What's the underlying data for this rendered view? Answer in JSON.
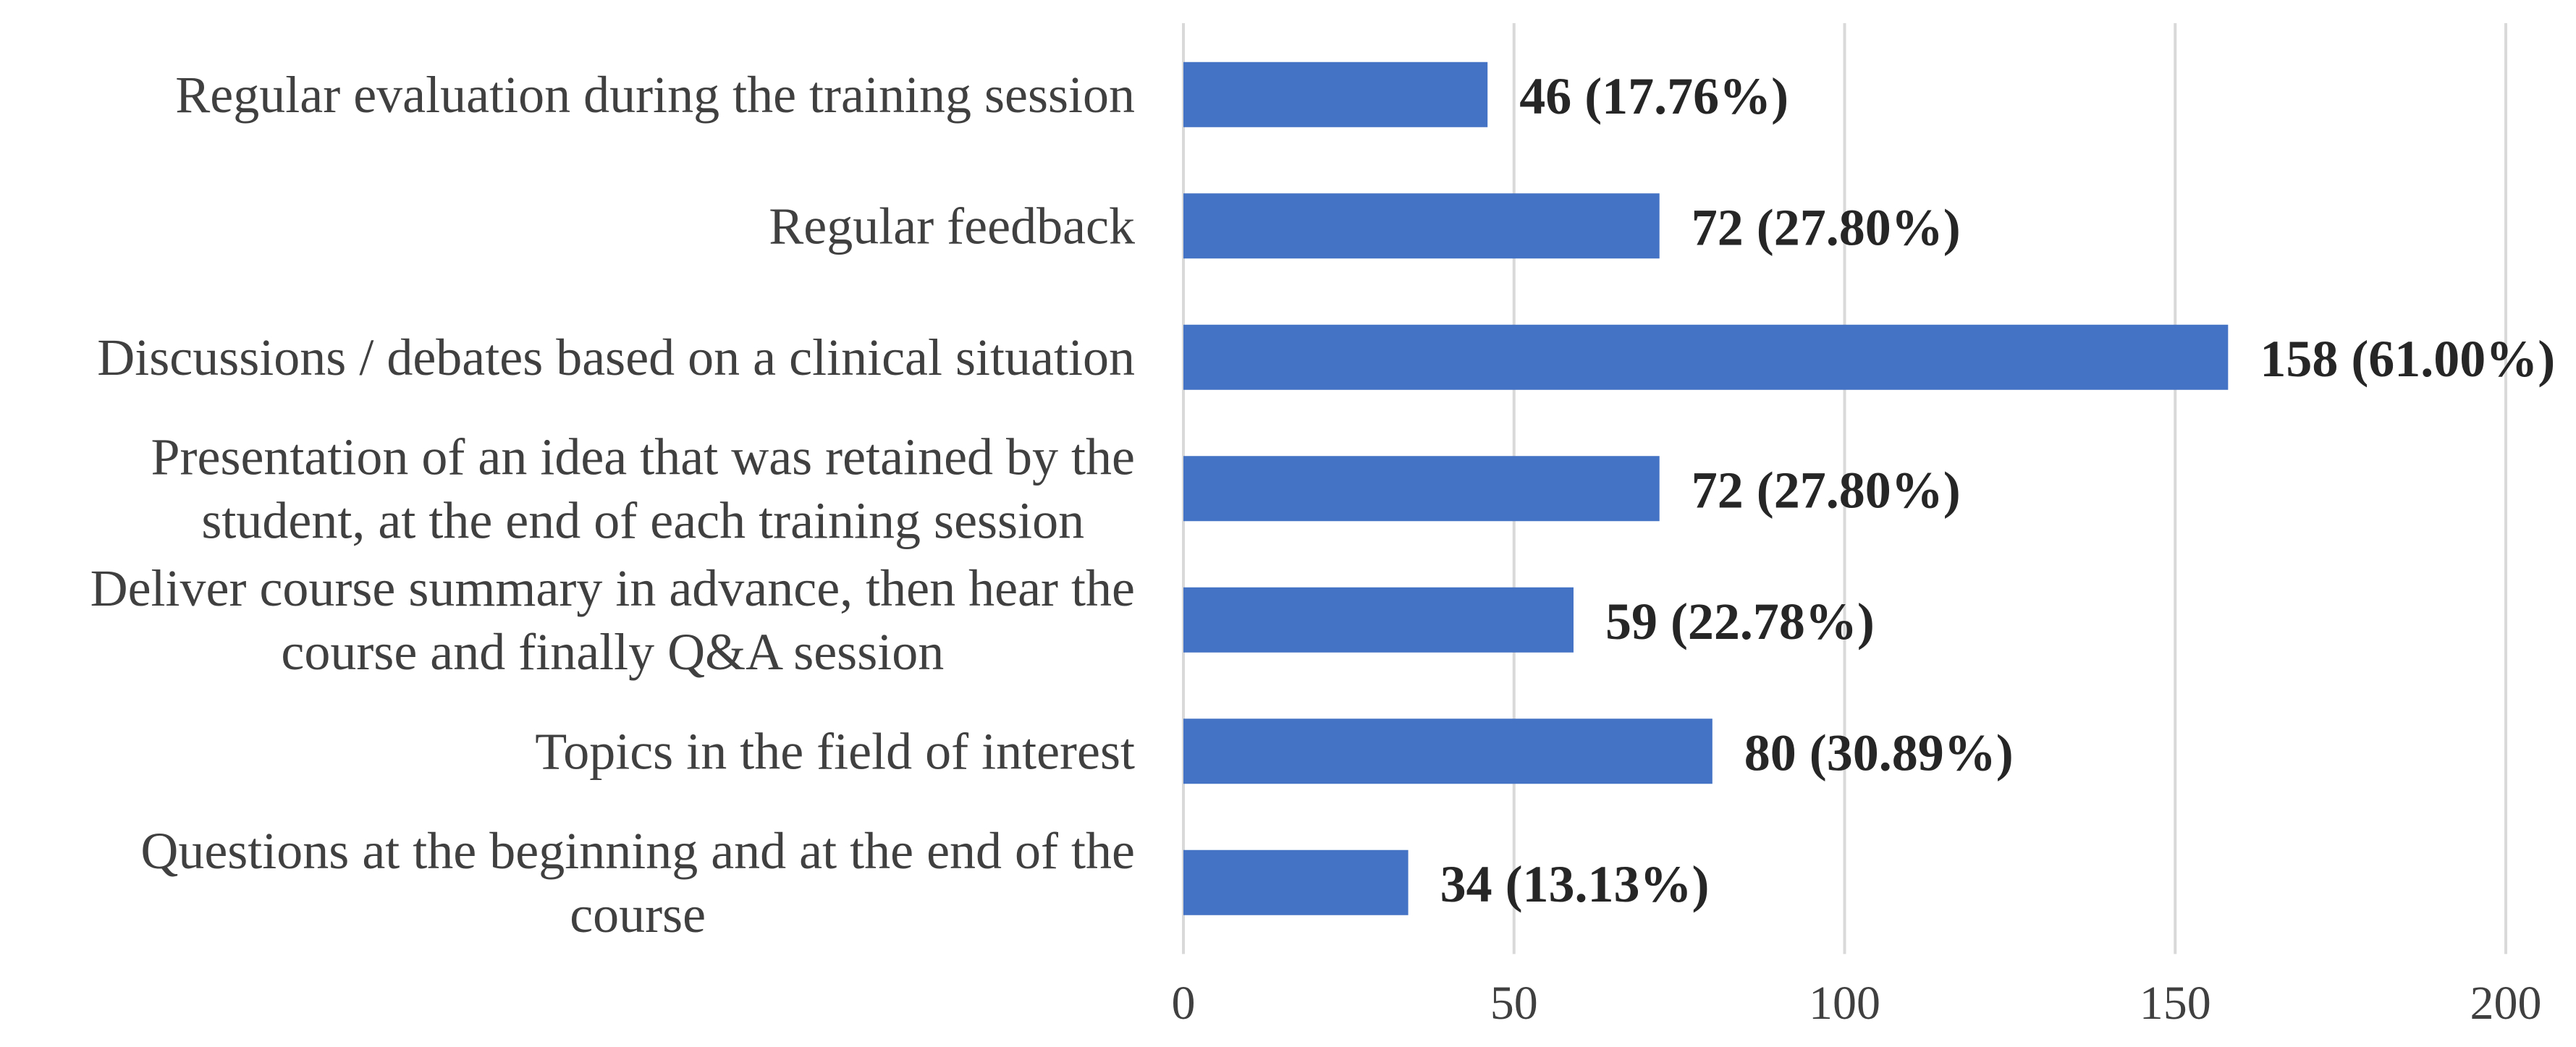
{
  "chart_data": {
    "type": "bar",
    "orientation": "horizontal",
    "categories": [
      "Regular evaluation during the training session",
      "Regular feedback",
      "Discussions / debates based on a clinical situation",
      "Presentation of an idea that was retained by the student, at the end of each training session",
      "Deliver course summary in advance, then hear the course and finally Q&A session",
      "Topics in the field of interest",
      "Questions at the beginning and at the end of the course"
    ],
    "category_lines": [
      [
        "Regular evaluation during the training session"
      ],
      [
        "Regular feedback"
      ],
      [
        "Discussions / debates based on a clinical situation"
      ],
      [
        "Presentation of an idea that was retained by the",
        "student, at the end of each training session"
      ],
      [
        "Deliver course summary in advance, then hear the",
        "course and finally Q&A session"
      ],
      [
        "Topics in the field of interest"
      ],
      [
        "Questions at the beginning and at the end of the",
        "course"
      ]
    ],
    "values": [
      46,
      72,
      158,
      72,
      59,
      80,
      34
    ],
    "data_labels": [
      "46 (17.76%)",
      "72 (27.80%)",
      "158 (61.00%)",
      "72 (27.80%)",
      "59 (22.78%)",
      "80 (30.89%)",
      "34 (13.13%)"
    ],
    "xlim": [
      0,
      200
    ],
    "xticks": [
      0,
      50,
      100,
      150,
      200
    ],
    "xtick_labels": [
      "0",
      "50",
      "100",
      "150",
      "200"
    ],
    "grid": "vertical",
    "legend": "none",
    "bar_color": "#4472c4",
    "gridline_color": "#d9d9d9",
    "label_color": "#404040",
    "data_label_color": "#262626",
    "title": "",
    "xlabel": "",
    "ylabel": ""
  }
}
